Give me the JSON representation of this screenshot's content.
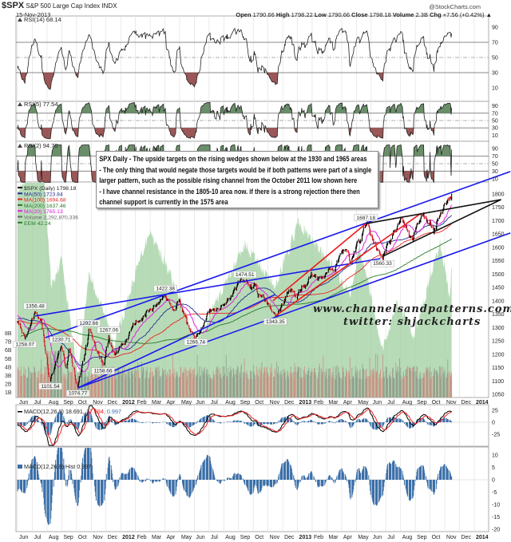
{
  "header": {
    "symbol": "$SPX",
    "name": "S&P 500 Large Cap Index",
    "exchange": "INDX",
    "date": "15-Nov-2013",
    "brand": "@StockCharts.com",
    "quote": {
      "open_label": "Open",
      "open": "1790.66",
      "high_label": "High",
      "high": "1798.22",
      "low_label": "Low",
      "low": "1790.66",
      "close_label": "Close",
      "close": "1798.18",
      "volume_label": "Volume",
      "volume": "2.3B",
      "chg_label": "Chg",
      "chg": "+7.56 (+0.42%)",
      "chg_icon": "triangle-up"
    }
  },
  "note": {
    "lines": [
      "SPX Daily - The upside targets on the rising wedges shown below at the 1930 and 1965 areas",
      "- The only thing that would negate those targets would be if both patterns were part of a single",
      "larger pattern, such as the possible rising channel from the October 2011 low shown here",
      "- I have channel resistance in the 1805-10 area now. if there is a strong rejection there then",
      "channel support is currently in the 1575 area"
    ]
  },
  "watermark": {
    "site": "www.channelsandpatterns.com",
    "twitter": "twitter: shjackcharts"
  },
  "chart_data": {
    "type": "line",
    "x_ticks": [
      "Jun",
      "Jul",
      "Aug",
      "Sep",
      "Oct",
      "Nov",
      "Dec",
      "2012",
      "Feb",
      "Mar",
      "Apr",
      "May",
      "Jun",
      "Jul",
      "Aug",
      "Sep",
      "Oct",
      "Nov",
      "Dec",
      "2013",
      "Feb",
      "Mar",
      "Apr",
      "May",
      "Jun",
      "Jul",
      "Aug",
      "Sep",
      "Oct",
      "Nov",
      "Dec",
      "2014"
    ],
    "x_range": [
      "2011-06-01",
      "2014-01-31"
    ],
    "price_panel": {
      "legend": {
        "price": "$SPX (Daily) 1798.18",
        "ma50": "MA(50) 1723.84",
        "ma100": "MA(100) 1694.68",
        "ma200": "MA(200) 1637.46",
        "ma20": "MA(20) 1765.13",
        "volume": "Volume 2,292,870,336",
        "eem": "EEM 42.24"
      },
      "colors": {
        "ma50": "#1f2f8f",
        "ma100": "#e8261f",
        "ma200": "#2a7a2a",
        "ma20": "#e020e0",
        "eem": "#9fcf9f",
        "up": "#000000",
        "down": "#d01020",
        "channel": "#1a1aee",
        "wedge_red": "#ee1a1a",
        "wedge_black": "#111111"
      },
      "ylim": [
        1030,
        1830
      ],
      "y_ticks": [
        1800,
        1750,
        1700,
        1650,
        1600,
        1550,
        1500,
        1450,
        1400,
        1350,
        1300,
        1250,
        1200,
        1150,
        1100,
        1050
      ],
      "volume_ticks": [
        "8B",
        "7B",
        "6B",
        "5B",
        "4B",
        "3B",
        "2B",
        "1B"
      ],
      "pivots": [
        {
          "date": "2010-09-01",
          "value": 1080
        },
        {
          "date": "2010-11-05",
          "value": 1225
        },
        {
          "date": "2011-02-18",
          "value": 1343
        },
        {
          "date": "2011-03-16",
          "value": 1256
        },
        {
          "date": "2011-05-02",
          "value": 1370
        },
        {
          "date": "2011-06-01",
          "value": 1320
        },
        {
          "date": "2011-06-16",
          "value": 1258.07,
          "label": "1258.07",
          "pos": "below"
        },
        {
          "date": "2011-07-07",
          "value": 1356.48,
          "label": "1356.48",
          "pos": "above"
        },
        {
          "date": "2011-07-20",
          "value": 1330
        },
        {
          "date": "2011-08-08",
          "value": 1101.54,
          "label": "1101.54",
          "pos": "below"
        },
        {
          "date": "2011-08-31",
          "value": 1230.71,
          "label": "1230.71",
          "pos": "above"
        },
        {
          "date": "2011-09-09",
          "value": 1150
        },
        {
          "date": "2011-09-16",
          "value": 1220
        },
        {
          "date": "2011-10-04",
          "value": 1074.77,
          "label": "1074.77",
          "pos": "below"
        },
        {
          "date": "2011-10-27",
          "value": 1292.66,
          "label": "1292.66",
          "pos": "above"
        },
        {
          "date": "2011-11-25",
          "value": 1158.66,
          "label": "1158.66",
          "pos": "below"
        },
        {
          "date": "2011-12-07",
          "value": 1267.06,
          "label": "1267.06",
          "pos": "above"
        },
        {
          "date": "2011-12-19",
          "value": 1200
        },
        {
          "date": "2012-01-31",
          "value": 1312
        },
        {
          "date": "2012-04-02",
          "value": 1422.38,
          "label": "1422.38",
          "pos": "above"
        },
        {
          "date": "2012-04-23",
          "value": 1365
        },
        {
          "date": "2012-05-01",
          "value": 1405
        },
        {
          "date": "2012-06-04",
          "value": 1266.74,
          "label": "1266.74",
          "pos": "below"
        },
        {
          "date": "2012-07-20",
          "value": 1370
        },
        {
          "date": "2012-09-14",
          "value": 1474.51,
          "label": "1474.51",
          "pos": "above"
        },
        {
          "date": "2012-10-05",
          "value": 1460
        },
        {
          "date": "2012-11-16",
          "value": 1343.35,
          "label": "1343.35",
          "pos": "below"
        },
        {
          "date": "2012-12-18",
          "value": 1445
        },
        {
          "date": "2012-12-31",
          "value": 1410
        },
        {
          "date": "2013-01-31",
          "value": 1500
        },
        {
          "date": "2013-02-25",
          "value": 1490
        },
        {
          "date": "2013-04-11",
          "value": 1590
        },
        {
          "date": "2013-04-18",
          "value": 1541
        },
        {
          "date": "2013-05-21",
          "value": 1687.18,
          "label": "1687.18",
          "pos": "above"
        },
        {
          "date": "2013-06-24",
          "value": 1560.33,
          "label": "1560.33",
          "pos": "below"
        },
        {
          "date": "2013-08-02",
          "value": 1709
        },
        {
          "date": "2013-08-27",
          "value": 1630
        },
        {
          "date": "2013-09-18",
          "value": 1725
        },
        {
          "date": "2013-10-09",
          "value": 1655
        },
        {
          "date": "2013-10-31",
          "value": 1763
        },
        {
          "date": "2013-11-15",
          "value": 1798.18
        }
      ],
      "eem_pivots": [
        {
          "date": "2011-06-01",
          "value": 48
        },
        {
          "date": "2011-07-25",
          "value": 49
        },
        {
          "date": "2011-08-10",
          "value": 41
        },
        {
          "date": "2011-09-01",
          "value": 43
        },
        {
          "date": "2011-10-04",
          "value": 34.5
        },
        {
          "date": "2011-10-27",
          "value": 42
        },
        {
          "date": "2011-12-19",
          "value": 37
        },
        {
          "date": "2012-02-29",
          "value": 45
        },
        {
          "date": "2012-04-10",
          "value": 42
        },
        {
          "date": "2012-06-04",
          "value": 37
        },
        {
          "date": "2012-09-14",
          "value": 44
        },
        {
          "date": "2012-11-15",
          "value": 41
        },
        {
          "date": "2013-01-03",
          "value": 45.5
        },
        {
          "date": "2013-03-01",
          "value": 43
        },
        {
          "date": "2013-04-18",
          "value": 40.5
        },
        {
          "date": "2013-05-08",
          "value": 44
        },
        {
          "date": "2013-06-24",
          "value": 36.5
        },
        {
          "date": "2013-07-25",
          "value": 40
        },
        {
          "date": "2013-08-28",
          "value": 37.5
        },
        {
          "date": "2013-10-22",
          "value": 44
        },
        {
          "date": "2013-11-11",
          "value": 40.5
        },
        {
          "date": "2013-11-15",
          "value": 42.24
        }
      ],
      "trendlines": [
        {
          "color": "channel",
          "from": [
            "2011-07-28",
            1262
          ],
          "to": [
            "2014-03-15",
            1884
          ]
        },
        {
          "color": "channel",
          "from": [
            "2011-07-07",
            1343
          ],
          "to": [
            "2013-06-20",
            1558
          ]
        },
        {
          "color": "channel",
          "from": [
            "2011-10-04",
            1074
          ],
          "to": [
            "2014-03-15",
            1654
          ]
        },
        {
          "color": "channel",
          "from": [
            "2011-10-04",
            1074
          ],
          "to": [
            "2012-11-15",
            1423
          ]
        },
        {
          "color": "wedge_red",
          "from": [
            "2012-11-11",
            1400
          ],
          "to": [
            "2013-05-21",
            1689
          ]
        },
        {
          "color": "wedge_red",
          "from": [
            "2012-11-16",
            1343
          ],
          "to": [
            "2013-09-13",
            1728
          ]
        },
        {
          "color": "wedge_black",
          "from": [
            "2013-05-21",
            1689
          ],
          "to": [
            "2014-02-24",
            1779
          ]
        },
        {
          "color": "wedge_black",
          "from": [
            "2013-06-24",
            1566
          ],
          "to": [
            "2014-02-24",
            1779
          ]
        }
      ]
    },
    "rsi_panels": [
      {
        "legend": "RSI(14) 68.14",
        "period": 14,
        "levels": [
          70,
          50,
          30
        ],
        "y_ticks": [
          90,
          70,
          50,
          30,
          10
        ],
        "fill_overbought": false
      },
      {
        "legend": "RSI(5) 77.54",
        "period": 5,
        "levels": [
          70,
          50,
          30
        ],
        "y_ticks": [
          90,
          70,
          50,
          30,
          10
        ],
        "fill_overbought": true
      },
      {
        "legend": "RSI(2) 94.70",
        "period": 2,
        "levels": [
          70,
          50,
          30
        ],
        "y_ticks": [
          90,
          70,
          50,
          30,
          10
        ],
        "fill_overbought": true
      }
    ],
    "macd_panel": {
      "legend_name": "MACD(12,26,9)",
      "macd": "18.691,",
      "signal": "17.694,",
      "hist": "0.997",
      "y_ticks": [
        25,
        0,
        -25
      ],
      "colors": {
        "macd": "#000000",
        "signal": "#ee2222",
        "hist": "#3b6fa8"
      }
    },
    "hist_panel": {
      "legend": "MACD(12,26,9) Hist 0.997",
      "y_ticks": [
        10,
        5,
        0,
        -5,
        -10,
        -15,
        -20
      ],
      "color": "#3b6fa8"
    }
  }
}
